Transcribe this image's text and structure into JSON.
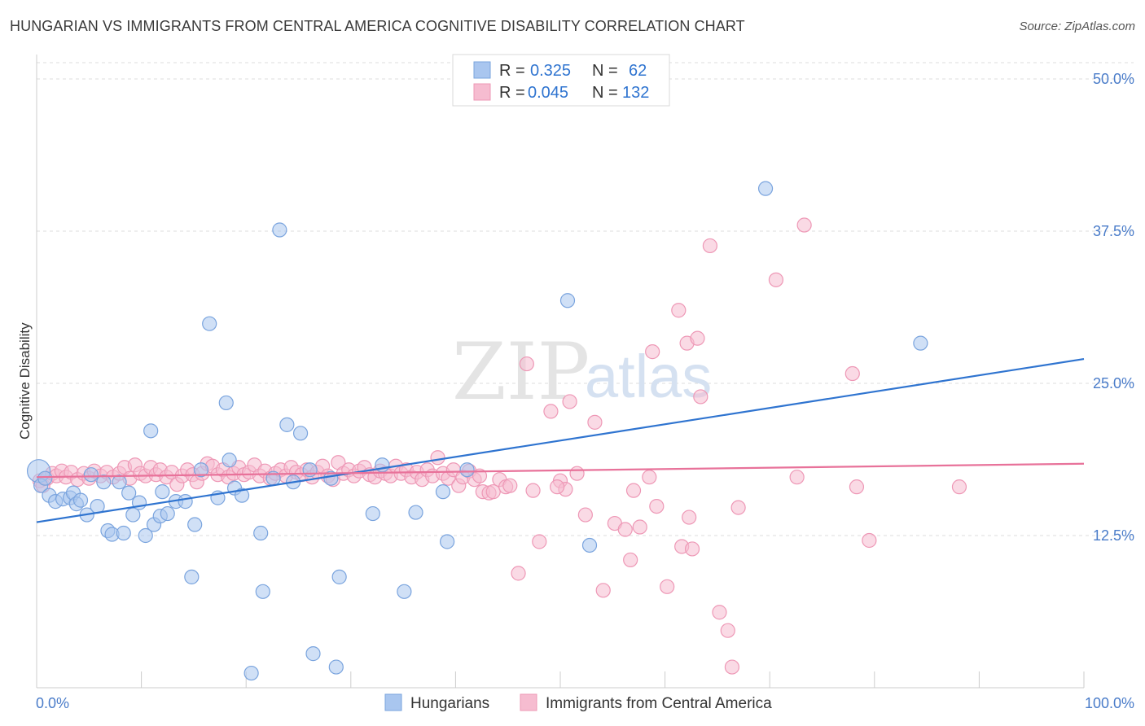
{
  "title": "HUNGARIAN VS IMMIGRANTS FROM CENTRAL AMERICA COGNITIVE DISABILITY CORRELATION CHART",
  "source": "Source: ZipAtlas.com",
  "watermark": {
    "zip": "ZIP",
    "atlas": "atlas"
  },
  "colors": {
    "blue_fill": "#a9c6ef",
    "blue_stroke": "#7aa4de",
    "blue_line": "#2f74d0",
    "pink_fill": "#f6bcd0",
    "pink_stroke": "#ee98b6",
    "pink_line": "#e8729a",
    "tick_text": "#4a7cc9",
    "grid": "#dddddd"
  },
  "legend": {
    "rows": [
      {
        "r_label": "R =",
        "r_value": "0.325",
        "n_label": "N =",
        "n_value": "62"
      },
      {
        "r_label": "R =",
        "r_value": "0.045",
        "n_label": "N =",
        "n_value": "132"
      }
    ]
  },
  "chart_data": {
    "type": "scatter",
    "title": "HUNGARIAN VS IMMIGRANTS FROM CENTRAL AMERICA COGNITIVE DISABILITY CORRELATION CHART",
    "xlabel": "",
    "ylabel": "Cognitive Disability",
    "xlim": [
      0,
      100
    ],
    "ylim": [
      0,
      52
    ],
    "x_tick_labels": [
      "0.0%",
      "100.0%"
    ],
    "y_ticks": [
      12.5,
      25.0,
      37.5,
      50.0
    ],
    "y_tick_labels": [
      "12.5%",
      "25.0%",
      "37.5%",
      "50.0%"
    ],
    "grid": true,
    "legend_position": "top-center",
    "series": [
      {
        "name": "Hungarians",
        "color": "#a9c6ef",
        "trend": {
          "x": [
            0,
            100
          ],
          "y": [
            13.6,
            27.0
          ]
        },
        "points": [
          [
            0.2,
            17.8
          ],
          [
            0.4,
            16.6
          ],
          [
            0.8,
            17.2
          ],
          [
            1.2,
            15.8
          ],
          [
            1.8,
            15.3
          ],
          [
            2.5,
            15.5
          ],
          [
            3.2,
            15.6
          ],
          [
            3.5,
            16.0
          ],
          [
            3.8,
            15.1
          ],
          [
            4.2,
            15.4
          ],
          [
            4.8,
            14.2
          ],
          [
            5.2,
            17.5
          ],
          [
            5.8,
            14.9
          ],
          [
            6.4,
            16.9
          ],
          [
            6.8,
            12.9
          ],
          [
            7.2,
            12.6
          ],
          [
            7.9,
            16.9
          ],
          [
            8.3,
            12.7
          ],
          [
            8.8,
            16.0
          ],
          [
            9.2,
            14.2
          ],
          [
            9.8,
            15.2
          ],
          [
            10.4,
            12.5
          ],
          [
            10.9,
            21.1
          ],
          [
            11.2,
            13.4
          ],
          [
            11.8,
            14.1
          ],
          [
            12.0,
            16.1
          ],
          [
            12.5,
            14.3
          ],
          [
            13.3,
            15.3
          ],
          [
            14.2,
            15.3
          ],
          [
            14.8,
            9.1
          ],
          [
            15.1,
            13.4
          ],
          [
            15.7,
            17.9
          ],
          [
            16.5,
            29.9
          ],
          [
            17.3,
            15.6
          ],
          [
            18.1,
            23.4
          ],
          [
            18.4,
            18.7
          ],
          [
            18.9,
            16.4
          ],
          [
            19.6,
            15.8
          ],
          [
            20.5,
            1.2
          ],
          [
            21.4,
            12.7
          ],
          [
            21.6,
            7.9
          ],
          [
            22.6,
            17.2
          ],
          [
            23.2,
            37.6
          ],
          [
            23.9,
            21.6
          ],
          [
            24.5,
            16.9
          ],
          [
            25.2,
            20.9
          ],
          [
            26.1,
            17.9
          ],
          [
            26.4,
            2.8
          ],
          [
            28.1,
            17.2
          ],
          [
            28.6,
            1.7
          ],
          [
            28.9,
            9.1
          ],
          [
            32.1,
            14.3
          ],
          [
            33.0,
            18.3
          ],
          [
            35.1,
            7.9
          ],
          [
            36.2,
            14.4
          ],
          [
            38.8,
            16.1
          ],
          [
            39.2,
            12.0
          ],
          [
            41.1,
            17.9
          ],
          [
            50.7,
            31.8
          ],
          [
            52.8,
            11.7
          ],
          [
            69.6,
            41.0
          ],
          [
            84.4,
            28.3
          ]
        ]
      },
      {
        "name": "Immigrants from Central America",
        "color": "#f6bcd0",
        "trend": {
          "x": [
            0,
            100
          ],
          "y": [
            17.3,
            18.4
          ]
        },
        "points": [
          [
            0.3,
            17.0
          ],
          [
            0.6,
            16.6
          ],
          [
            1.0,
            17.2
          ],
          [
            1.5,
            17.6
          ],
          [
            1.9,
            17.4
          ],
          [
            2.4,
            17.8
          ],
          [
            2.8,
            17.3
          ],
          [
            3.3,
            17.7
          ],
          [
            3.9,
            17.1
          ],
          [
            4.5,
            17.6
          ],
          [
            5.0,
            17.2
          ],
          [
            5.5,
            17.8
          ],
          [
            6.1,
            17.4
          ],
          [
            6.7,
            17.7
          ],
          [
            7.3,
            17.3
          ],
          [
            7.9,
            17.6
          ],
          [
            8.4,
            18.1
          ],
          [
            8.9,
            17.2
          ],
          [
            9.4,
            18.3
          ],
          [
            9.9,
            17.6
          ],
          [
            10.4,
            17.4
          ],
          [
            10.9,
            18.1
          ],
          [
            11.4,
            17.5
          ],
          [
            11.8,
            17.9
          ],
          [
            12.4,
            17.3
          ],
          [
            12.9,
            17.7
          ],
          [
            13.4,
            16.7
          ],
          [
            13.9,
            17.4
          ],
          [
            14.4,
            17.9
          ],
          [
            14.9,
            17.5
          ],
          [
            15.3,
            16.9
          ],
          [
            15.8,
            17.6
          ],
          [
            16.3,
            18.4
          ],
          [
            16.8,
            18.2
          ],
          [
            17.3,
            17.5
          ],
          [
            17.8,
            17.9
          ],
          [
            18.3,
            17.3
          ],
          [
            18.8,
            17.6
          ],
          [
            19.3,
            18.1
          ],
          [
            19.8,
            17.5
          ],
          [
            20.3,
            17.7
          ],
          [
            20.8,
            18.3
          ],
          [
            21.3,
            17.4
          ],
          [
            21.8,
            17.8
          ],
          [
            22.3,
            17.2
          ],
          [
            22.8,
            17.6
          ],
          [
            23.3,
            17.9
          ],
          [
            23.8,
            17.4
          ],
          [
            24.3,
            18.1
          ],
          [
            24.8,
            17.7
          ],
          [
            25.3,
            17.5
          ],
          [
            25.8,
            17.9
          ],
          [
            26.3,
            17.3
          ],
          [
            26.8,
            17.7
          ],
          [
            27.3,
            18.2
          ],
          [
            27.8,
            17.4
          ],
          [
            28.3,
            17.1
          ],
          [
            28.8,
            18.5
          ],
          [
            29.3,
            17.6
          ],
          [
            29.8,
            17.9
          ],
          [
            30.3,
            17.4
          ],
          [
            30.8,
            17.8
          ],
          [
            31.3,
            18.1
          ],
          [
            31.8,
            17.5
          ],
          [
            32.3,
            17.3
          ],
          [
            32.8,
            17.8
          ],
          [
            33.3,
            17.6
          ],
          [
            33.8,
            17.4
          ],
          [
            34.3,
            18.2
          ],
          [
            34.8,
            17.6
          ],
          [
            35.3,
            17.9
          ],
          [
            35.8,
            17.3
          ],
          [
            36.3,
            17.7
          ],
          [
            36.8,
            17.1
          ],
          [
            37.3,
            17.9
          ],
          [
            37.8,
            17.4
          ],
          [
            38.3,
            18.9
          ],
          [
            38.8,
            17.6
          ],
          [
            39.3,
            17.2
          ],
          [
            39.8,
            17.9
          ],
          [
            40.3,
            16.6
          ],
          [
            40.7,
            17.3
          ],
          [
            41.3,
            17.8
          ],
          [
            41.8,
            17.1
          ],
          [
            42.3,
            17.4
          ],
          [
            42.6,
            16.1
          ],
          [
            43.2,
            16.0
          ],
          [
            43.6,
            16.1
          ],
          [
            44.2,
            17.1
          ],
          [
            44.8,
            16.5
          ],
          [
            45.2,
            16.6
          ],
          [
            46.8,
            26.6
          ],
          [
            47.4,
            16.2
          ],
          [
            48.0,
            12.0
          ],
          [
            49.1,
            22.7
          ],
          [
            50.0,
            17.0
          ],
          [
            50.5,
            16.3
          ],
          [
            51.6,
            17.6
          ],
          [
            52.4,
            14.2
          ],
          [
            53.3,
            21.8
          ],
          [
            54.1,
            8.0
          ],
          [
            55.2,
            13.5
          ],
          [
            56.2,
            13.0
          ],
          [
            57.0,
            16.2
          ],
          [
            57.6,
            13.2
          ],
          [
            58.5,
            17.3
          ],
          [
            58.8,
            27.6
          ],
          [
            59.2,
            14.9
          ],
          [
            60.2,
            8.3
          ],
          [
            61.3,
            31.0
          ],
          [
            61.6,
            11.6
          ],
          [
            62.1,
            28.3
          ],
          [
            62.6,
            11.4
          ],
          [
            63.1,
            28.7
          ],
          [
            63.4,
            23.9
          ],
          [
            64.3,
            36.3
          ],
          [
            65.2,
            6.2
          ],
          [
            66.0,
            4.7
          ],
          [
            66.4,
            1.7
          ],
          [
            67.0,
            14.8
          ],
          [
            70.6,
            33.5
          ],
          [
            73.3,
            38.0
          ],
          [
            72.6,
            17.3
          ],
          [
            77.9,
            25.8
          ],
          [
            78.3,
            16.5
          ],
          [
            79.5,
            12.1
          ],
          [
            88.1,
            16.5
          ],
          [
            50.9,
            23.5
          ],
          [
            62.3,
            14.0
          ],
          [
            56.7,
            10.5
          ],
          [
            46.0,
            9.4
          ],
          [
            49.7,
            16.5
          ]
        ]
      }
    ]
  }
}
